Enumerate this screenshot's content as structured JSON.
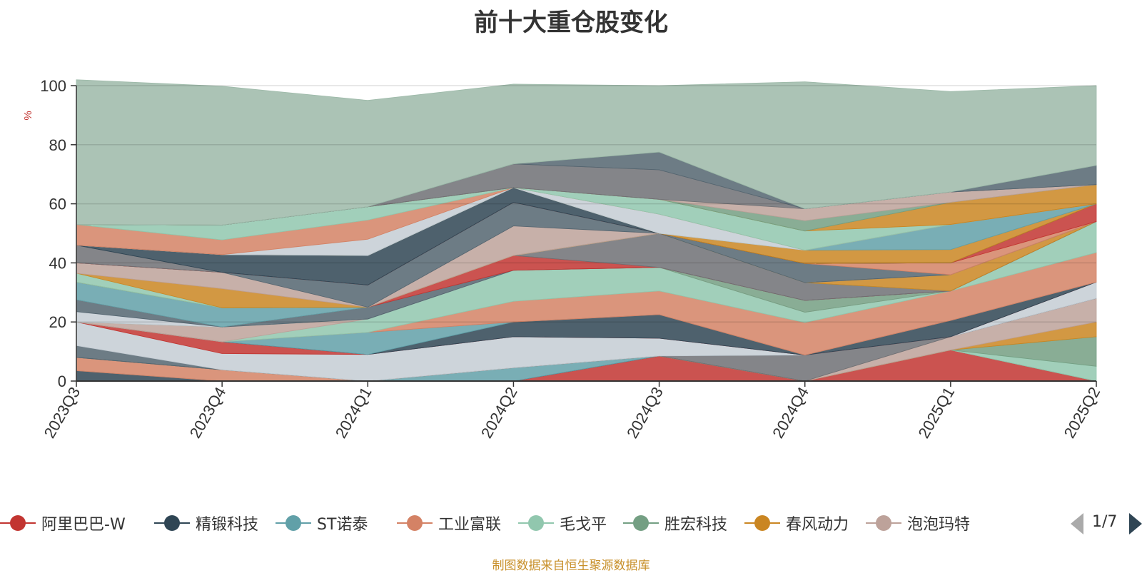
{
  "title": "前十大重仓股变化",
  "footer": "制图数据来自恒生聚源数据库",
  "legend_page": "1/7",
  "chart_data": {
    "type": "area",
    "stacked": true,
    "ylabel": "%",
    "ylim": [
      0,
      100
    ],
    "yticks": [
      0,
      20,
      40,
      60,
      80,
      100
    ],
    "grid": true,
    "legend_position": "bottom",
    "categories": [
      "2023Q3",
      "2023Q4",
      "2024Q1",
      "2024Q2",
      "2024Q3",
      "2024Q4",
      "2025Q1",
      "2025Q2"
    ],
    "series": [
      {
        "name": "阿里巴巴-W",
        "color": "#c23531",
        "values": [
          0,
          0,
          0,
          0,
          8.5,
          0,
          10.5,
          0
        ]
      },
      {
        "name": "精锻科技",
        "color": "#2f4554",
        "values": [
          3.5,
          0,
          0,
          0,
          0,
          0,
          0,
          0
        ]
      },
      {
        "name": "ST诺泰",
        "color": "#61a0a8",
        "values": [
          0,
          0,
          0,
          4.5,
          0,
          0,
          0,
          0
        ]
      },
      {
        "name": "工业富联",
        "color": "#d48265",
        "values": [
          4.5,
          3.8,
          0,
          0,
          0,
          0,
          0,
          0
        ]
      },
      {
        "name": "毛戈平",
        "color": "#91c7ae",
        "values": [
          0,
          0,
          0,
          0,
          0,
          0,
          0,
          5
        ]
      },
      {
        "name": "胜宏科技",
        "color": "#749f83",
        "values": [
          0,
          0,
          0,
          0,
          0,
          0,
          0,
          10
        ]
      },
      {
        "name": "春风动力",
        "color": "#ca8622",
        "values": [
          0,
          0,
          0,
          0,
          0,
          0,
          0,
          5
        ]
      },
      {
        "name": "泡泡玛特",
        "color": "#bda29a",
        "values": [
          0,
          0,
          0,
          0,
          0,
          0,
          4.5,
          8
        ]
      },
      {
        "name": "",
        "color": "#6e7074",
        "values": [
          0,
          0,
          0,
          0,
          0,
          8.8,
          0,
          0
        ]
      },
      {
        "name": "",
        "color": "#546570",
        "values": [
          4,
          0,
          0,
          0,
          0,
          0,
          0,
          0
        ]
      },
      {
        "name": "",
        "color": "#c4ccd3",
        "values": [
          8,
          5.5,
          9,
          10.5,
          6,
          0,
          0,
          5.5
        ]
      },
      {
        "name": "",
        "color": "#c23531",
        "values": [
          0,
          4,
          0,
          0,
          0,
          0,
          0,
          0
        ]
      },
      {
        "name": "",
        "color": "#2f4554",
        "values": [
          0,
          0,
          0,
          5,
          8,
          0,
          5.5,
          0
        ]
      },
      {
        "name": "",
        "color": "#61a0a8",
        "values": [
          0,
          0,
          7.5,
          0,
          0,
          0,
          0,
          0
        ]
      },
      {
        "name": "",
        "color": "#d48265",
        "values": [
          0,
          0,
          0,
          7,
          8,
          11,
          10,
          10
        ]
      },
      {
        "name": "",
        "color": "#91c7ae",
        "values": [
          0,
          0,
          4.5,
          10.5,
          8,
          3.5,
          0,
          10.5
        ]
      },
      {
        "name": "",
        "color": "#bda29a",
        "values": [
          0,
          5,
          0,
          0,
          0,
          0,
          0,
          0
        ]
      },
      {
        "name": "",
        "color": "#749f83",
        "values": [
          0,
          0,
          0,
          0,
          0,
          4,
          0,
          0
        ]
      },
      {
        "name": "",
        "color": "#c4ccd3",
        "values": [
          3.5,
          0,
          0,
          0,
          0,
          0,
          0,
          0
        ]
      },
      {
        "name": "",
        "color": "#546570",
        "values": [
          4,
          0,
          4,
          0,
          0,
          0,
          0,
          0
        ]
      },
      {
        "name": "",
        "color": "#c23531",
        "values": [
          0,
          0,
          0,
          5,
          0,
          0,
          0,
          0
        ]
      },
      {
        "name": "",
        "color": "#6e7074",
        "values": [
          0,
          0,
          0,
          0,
          11.5,
          6,
          0,
          0
        ]
      },
      {
        "name": "",
        "color": "#61a0a8",
        "values": [
          6,
          6.5,
          0,
          0,
          0,
          0,
          0,
          0
        ]
      },
      {
        "name": "",
        "color": "#ca8622",
        "values": [
          0,
          0,
          0,
          0,
          0,
          0,
          5.5,
          0
        ]
      },
      {
        "name": "",
        "color": "#91c7ae",
        "values": [
          3,
          0,
          0,
          0,
          0,
          0,
          0,
          0
        ]
      },
      {
        "name": "",
        "color": "#ca8622",
        "values": [
          0,
          6.5,
          0,
          0,
          0,
          0,
          0,
          0
        ]
      },
      {
        "name": "",
        "color": "#bda29a",
        "values": [
          3.5,
          5.5,
          0,
          10,
          0,
          0,
          0,
          0
        ]
      },
      {
        "name": "",
        "color": "#546570",
        "values": [
          0,
          0,
          7.5,
          8,
          0,
          6.5,
          0,
          0
        ]
      },
      {
        "name": "",
        "color": "#d48265",
        "values": [
          0,
          0,
          0,
          0,
          0,
          0,
          4,
          0
        ]
      },
      {
        "name": "",
        "color": "#c23531",
        "values": [
          0,
          0,
          0,
          0,
          0,
          0,
          0,
          6
        ]
      },
      {
        "name": "",
        "color": "#6e7074",
        "values": [
          6,
          0,
          0,
          0,
          0,
          0,
          0,
          0
        ]
      },
      {
        "name": "",
        "color": "#2f4554",
        "values": [
          0,
          6,
          10,
          5,
          0,
          0,
          0,
          0
        ]
      },
      {
        "name": "",
        "color": "#ca8622",
        "values": [
          0,
          0,
          0,
          0,
          0,
          4.5,
          4.5,
          0
        ]
      },
      {
        "name": "",
        "color": "#61a0a8",
        "values": [
          0,
          0,
          0,
          0,
          0,
          0,
          8.5,
          0
        ]
      },
      {
        "name": "",
        "color": "#c4ccd3",
        "values": [
          0,
          0,
          5.5,
          0,
          6.5,
          0,
          0,
          0
        ]
      },
      {
        "name": "",
        "color": "#d48265",
        "values": [
          7,
          5,
          6.5,
          0,
          0,
          0,
          0,
          0
        ]
      },
      {
        "name": "",
        "color": "#91c7ae",
        "values": [
          0,
          5,
          4.5,
          0,
          5,
          6.5,
          0,
          0
        ]
      },
      {
        "name": "",
        "color": "#ca8622",
        "values": [
          0,
          0,
          0,
          0,
          0,
          0,
          7.5,
          6.5
        ]
      },
      {
        "name": "",
        "color": "#749f83",
        "values": [
          0,
          0,
          0,
          0,
          0,
          3.5,
          0,
          0
        ]
      },
      {
        "name": "",
        "color": "#bda29a",
        "values": [
          0,
          0,
          0,
          0,
          0,
          4,
          3.5,
          0
        ]
      },
      {
        "name": "",
        "color": "#6e7074",
        "values": [
          0,
          0,
          0,
          8,
          10,
          0,
          0,
          0
        ]
      },
      {
        "name": "",
        "color": "#546570",
        "values": [
          0,
          0,
          0,
          0,
          6,
          0,
          0,
          6.5
        ]
      },
      {
        "name": "",
        "color": "#9cb9a8",
        "values": [
          49,
          47,
          36,
          27,
          22.5,
          43,
          34,
          27
        ]
      }
    ]
  }
}
